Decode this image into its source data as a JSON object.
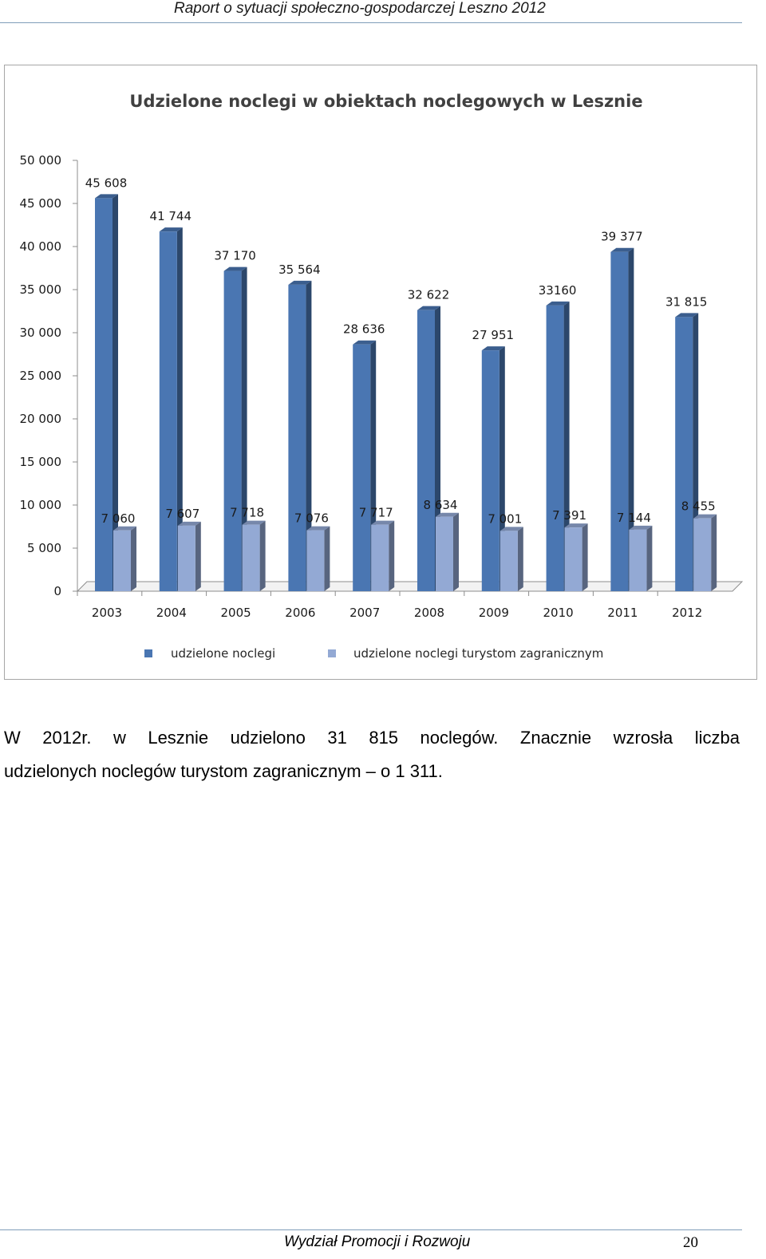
{
  "header": {
    "text": "Raport o sytuacji społeczno-gospodarczej Leszno 2012"
  },
  "chart_data": {
    "type": "bar",
    "title": "Udzielone noclegi w obiektach noclegowych w Lesznie",
    "categories": [
      "2003",
      "2004",
      "2005",
      "2006",
      "2007",
      "2008",
      "2009",
      "2010",
      "2011",
      "2012"
    ],
    "series": [
      {
        "name": "udzielone noclegi",
        "color": "#4a76b2",
        "values": [
          45608,
          41744,
          37170,
          35564,
          28636,
          32622,
          27951,
          33160,
          39377,
          31815
        ],
        "labels": [
          "45 608",
          "41 744",
          "37 170",
          "35 564",
          "28 636",
          "32 622",
          "27 951",
          "33160",
          "39 377",
          "31 815"
        ]
      },
      {
        "name": "udzielone noclegi turystom zagranicznym",
        "color": "#93a9d4",
        "values": [
          7060,
          7607,
          7718,
          7076,
          7717,
          8634,
          7001,
          7391,
          7144,
          8455
        ],
        "labels": [
          "7 060",
          "7 607",
          "7 718",
          "7 076",
          "7 717",
          "8 634",
          "7 001",
          "7 391",
          "7 144",
          "8 455"
        ]
      }
    ],
    "yticks": [
      "0",
      "5 000",
      "10 000",
      "15 000",
      "20 000",
      "25 000",
      "30 000",
      "35 000",
      "40 000",
      "45 000",
      "50 000"
    ],
    "ylim": [
      0,
      50000
    ],
    "xlabel": "",
    "ylabel": "",
    "legend": "bottom",
    "grid": false
  },
  "body": {
    "line1": "W 2012r. w Lesznie udzielono 31 815 noclegów. Znacznie wzrosła liczba",
    "line2": "udzielonych noclegów turystom zagranicznym – o 1 311."
  },
  "footer": {
    "text": "Wydział Promocji i Rozwoju",
    "page_number": "20"
  }
}
